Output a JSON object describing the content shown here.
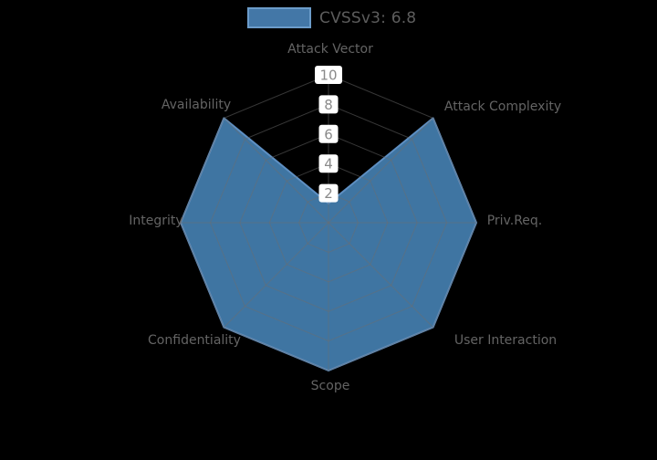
{
  "legend": {
    "label": "CVSSv3: 6.8",
    "swatch_color": "#4682B4"
  },
  "chart_data": {
    "type": "radar",
    "categories": [
      "Attack Vector",
      "Attack Complexity",
      "Priv.Req.",
      "User Interaction",
      "Scope",
      "Confidentiality",
      "Integrity",
      "Availability"
    ],
    "series": [
      {
        "name": "CVSSv3: 6.8",
        "values": [
          1.3,
          10,
          10,
          10,
          10,
          10,
          10,
          10
        ]
      }
    ],
    "radial_ticks": [
      "2",
      "4",
      "6",
      "8",
      "10"
    ],
    "radial_tick_values": [
      2,
      4,
      6,
      8,
      10
    ],
    "r_min": 0,
    "r_max": 10,
    "title": "",
    "legend_position": "top-center",
    "grid": true,
    "grid_shape": "polygon-web",
    "colors": {
      "fill": "#4682B4",
      "edge": "#5E8FC2",
      "grid": "#6E6E6E",
      "tick_text": "#8A8A8A",
      "tick_box": "#FFFFFF",
      "label_text": "#646464",
      "background": "#000000"
    }
  }
}
